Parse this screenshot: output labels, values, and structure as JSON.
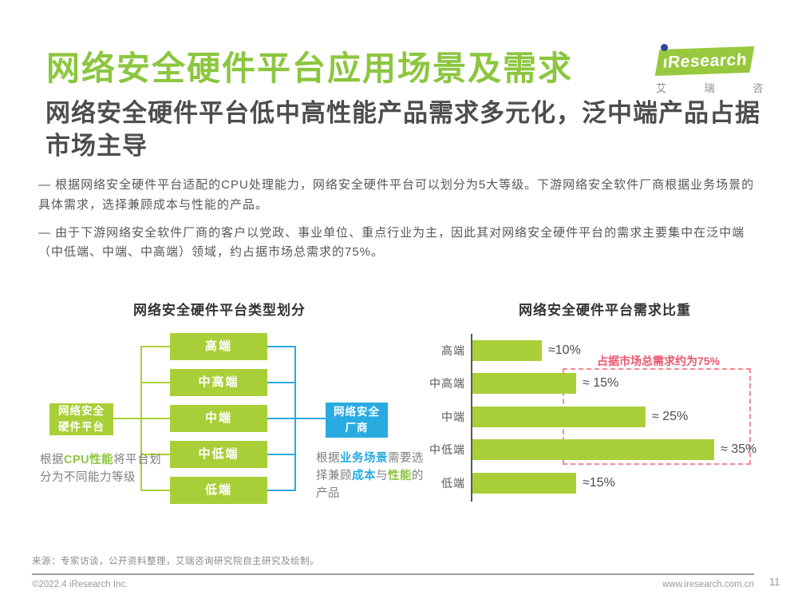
{
  "page": {
    "title": "网络安全硬件平台应用场景及需求",
    "subtitle": "网络安全硬件平台低中高性能产品需求多元化，泛中端产品占据市场主导",
    "bullets": [
      "— 根据网络安全硬件平台适配的CPU处理能力，网络安全硬件平台可以划分为5大等级。下游网络安全软件厂商根据业务场景的具体需求，选择兼顾成本与性能的产品。",
      "— 由于下游网络安全软件厂商的客户以党政、事业单位、重点行业为主，因此其对网络安全硬件平台的需求主要集中在泛中端（中低端、中端、中高端）领域，约占据市场总需求的75%。"
    ]
  },
  "logo": {
    "brand": "ıResearch",
    "cn_name": "艾 瑞 咨 询"
  },
  "diagram": {
    "title": "网络安全硬件平台类型划分",
    "levels": [
      "高端",
      "中高端",
      "中端",
      "中低端",
      "低端"
    ],
    "left_node": {
      "line1": "网络安全",
      "line2": "硬件平台"
    },
    "right_node": {
      "line1": "网络安全",
      "line2": "厂商"
    },
    "left_caption": {
      "p1": "根据",
      "hl1": "CPU性能",
      "p2": "将平台划分为不同能力等级"
    },
    "right_caption": {
      "p1": "根据",
      "hl1": "业务场景",
      "p2": "需要选择兼顾",
      "hl2": "成本",
      "p3": "与",
      "hl3": "性能",
      "p4": "的产品"
    }
  },
  "chart_data": {
    "type": "bar",
    "orientation": "horizontal",
    "title": "网络安全硬件平台需求比重",
    "categories": [
      "高端",
      "中高端",
      "中端",
      "中低端",
      "低端"
    ],
    "values": [
      10,
      15,
      25,
      35,
      15
    ],
    "value_labels": [
      "≈10%",
      "≈ 15%",
      "≈ 25%",
      "≈ 35%",
      "≈15%"
    ],
    "xlabel": "",
    "ylabel": "",
    "xlim": [
      0,
      40
    ],
    "grid": false,
    "legend": "none",
    "bar_color": "#A9CF38",
    "annotation": "占据市场总需求约为75%",
    "annotation_covers": [
      "中高端",
      "中端",
      "中低端"
    ]
  },
  "footer": {
    "source": "来源：专家访谈，公开资料整理，艾瑞咨询研究院自主研究及绘制。",
    "copyright": "©2022.4 iResearch Inc.",
    "website": "www.iresearch.com.cn",
    "page_number": "11"
  },
  "colors": {
    "title_green": "#8CC63F",
    "box_green": "#A9CF38",
    "accent_blue": "#29ABE2",
    "annotation_red": "#E8586E",
    "heading_gray": "#4D4D4D",
    "body_gray": "#595757"
  }
}
